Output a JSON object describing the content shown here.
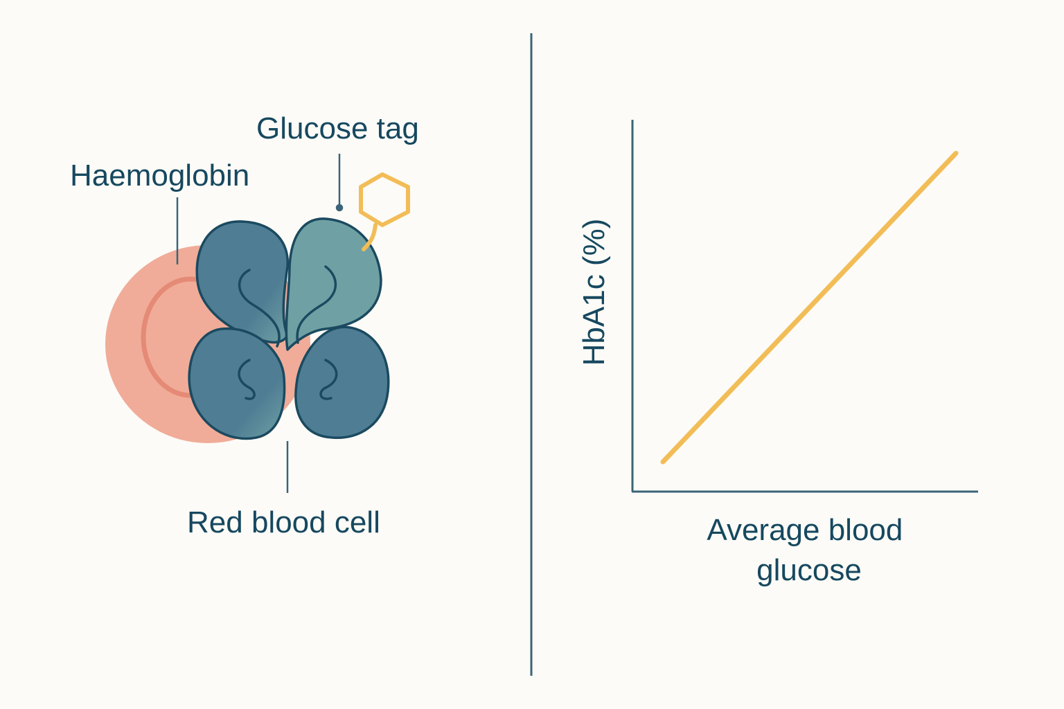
{
  "colors": {
    "background": "#fcfbf7",
    "ink": "#16485f",
    "divider": "#3a6478",
    "red_blood_cell": "#f0ac98",
    "red_blood_cell_rim": "#e48a76",
    "haemoglobin_dark": "#4f7e94",
    "haemoglobin_light": "#6fa1a4",
    "haemoglobin_outline": "#1b4a60",
    "glucose_tag": "#f2bd57",
    "trend_line": "#f2bd57"
  },
  "diagram": {
    "labels": {
      "glucose_tag": "Glucose tag",
      "haemoglobin": "Haemoglobin",
      "red_blood_cell": "Red blood cell"
    },
    "icons": {
      "glucose": "hexagon-glucose-icon",
      "haemoglobin": "haemoglobin-subunits",
      "cell": "red-blood-cell-disc"
    }
  },
  "chart_data": {
    "type": "line",
    "xlabel": "Average blood glucose",
    "ylabel": "HbA1c (%)",
    "grid": false,
    "legend": "none",
    "x": [
      0,
      1
    ],
    "series": [
      {
        "values": [
          0.08,
          0.91
        ],
        "color": "#f2bd57"
      }
    ],
    "xlim": [
      0,
      1
    ],
    "ylim": [
      0,
      1
    ]
  }
}
